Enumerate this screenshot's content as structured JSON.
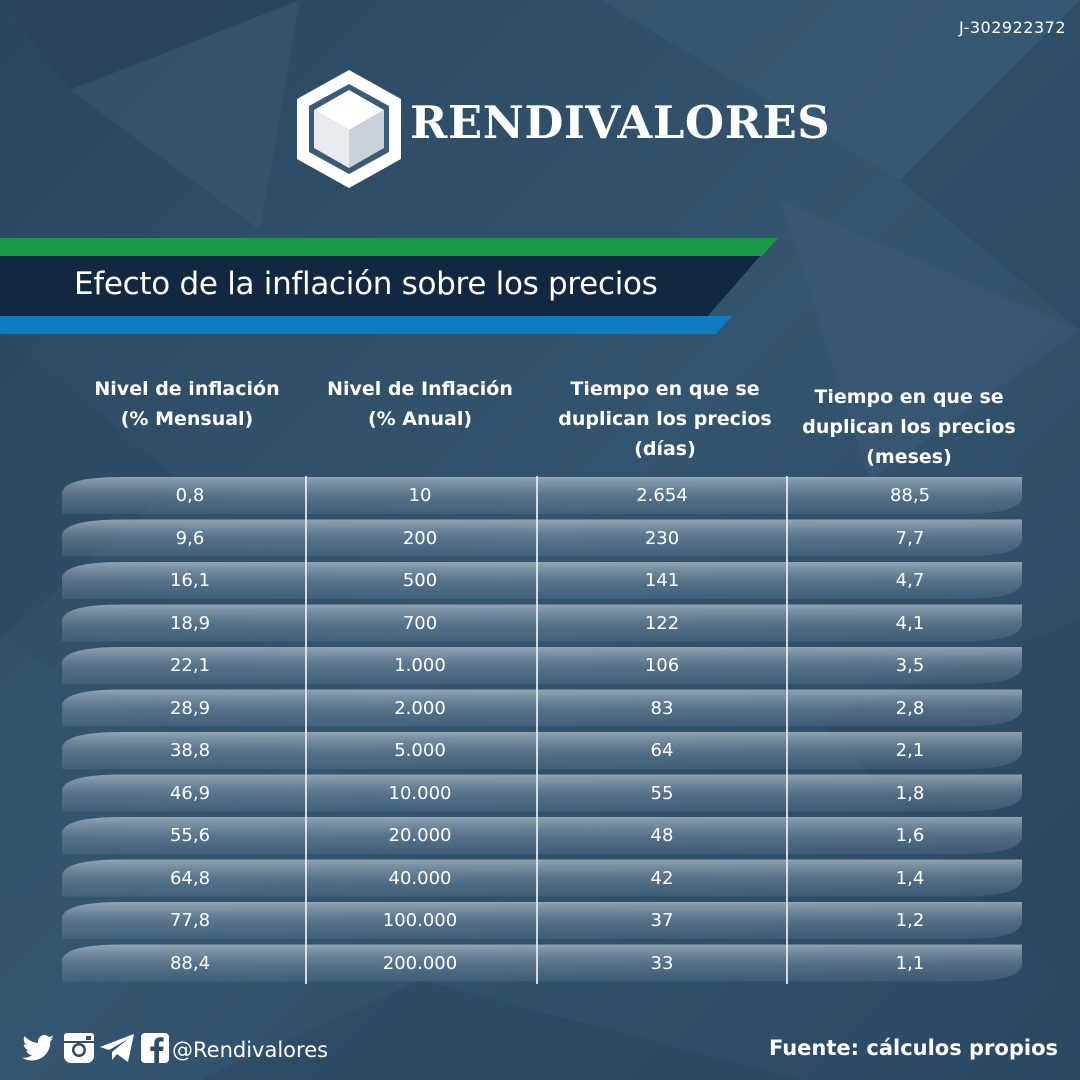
{
  "header": {
    "rif": "J-302922372",
    "brand": "RENDIVALORES",
    "logo_icon": "hexagon-cube-logo"
  },
  "banner": {
    "title": "Efecto de la inflación sobre los precios",
    "green": "#1a9a46",
    "navy": "#122840",
    "blue": "#0f7bc0"
  },
  "chart_data": {
    "type": "table",
    "title": "Efecto de la inflación sobre los precios",
    "columns": [
      "Nivel de inflación\n(% Mensual)",
      "Nivel de Inflación\n(% Anual)",
      "Tiempo en que se\nduplican los precios\n(días)",
      "Tiempo en que se\nduplican los precios\n(meses)"
    ],
    "rows": [
      [
        "0,8",
        "10",
        "2.654",
        "88,5"
      ],
      [
        "9,6",
        "200",
        "230",
        "7,7"
      ],
      [
        "16,1",
        "500",
        "141",
        "4,7"
      ],
      [
        "18,9",
        "700",
        "122",
        "4,1"
      ],
      [
        "22,1",
        "1.000",
        "106",
        "3,5"
      ],
      [
        "28,9",
        "2.000",
        "83",
        "2,8"
      ],
      [
        "38,8",
        "5.000",
        "64",
        "2,1"
      ],
      [
        "46,9",
        "10.000",
        "55",
        "1,8"
      ],
      [
        "55,6",
        "20.000",
        "48",
        "1,6"
      ],
      [
        "64,8",
        "40.000",
        "42",
        "1,4"
      ],
      [
        "77,8",
        "100.000",
        "37",
        "1,2"
      ],
      [
        "88,4",
        "200.000",
        "33",
        "1,1"
      ]
    ]
  },
  "footer": {
    "social_icons": [
      "twitter-icon",
      "instagram-icon",
      "telegram-icon",
      "facebook-icon"
    ],
    "handle": "@Rendivalores",
    "source": "Fuente: cálculos propios"
  }
}
